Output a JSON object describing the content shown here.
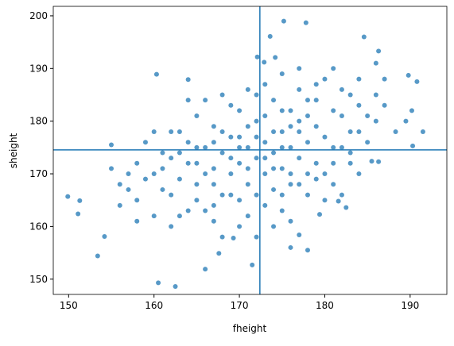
{
  "chart_data": {
    "type": "scatter",
    "x_label": "fheight",
    "y_label": "sheight",
    "color": "#1f77b4",
    "xlim": [
      148.2,
      194.3
    ],
    "ylim": [
      147.1,
      201.8
    ],
    "xticks": [
      150,
      160,
      170,
      180,
      190
    ],
    "yticks": [
      150,
      160,
      170,
      180,
      190,
      200
    ],
    "vlines": [
      172.4
    ],
    "hlines": [
      174.55
    ],
    "x": [
      149.9,
      151.1,
      151.3,
      153.4,
      154.2,
      155,
      160.3,
      160.5,
      162.5,
      164,
      172.1,
      172.9,
      173.6,
      175.2,
      177.8,
      174.2,
      184.6,
      186.3,
      189.8,
      190.8,
      191.5,
      190.3,
      178,
      177,
      167.6,
      166,
      171.5,
      169.3,
      179.4,
      181.6,
      182.5,
      185.5,
      186.3,
      188.3,
      190.2,
      189.5,
      187,
      186,
      160,
      161,
      162,
      163,
      164,
      165,
      165,
      166,
      166,
      167,
      167,
      168,
      168,
      169,
      169,
      170,
      170,
      170,
      171,
      171,
      171,
      172,
      172,
      172,
      173,
      173,
      173,
      174,
      174,
      174,
      175,
      175,
      175,
      176,
      176,
      176,
      177,
      177,
      177,
      178,
      178,
      178,
      179,
      179,
      180,
      180,
      181,
      181,
      182,
      182,
      183,
      183,
      184,
      184,
      185,
      185,
      186,
      176,
      174,
      170,
      167,
      164,
      162,
      158,
      157,
      156,
      159,
      158,
      155,
      156,
      168,
      166,
      164,
      162,
      163,
      165,
      167,
      169,
      171,
      173,
      175,
      177,
      179,
      181,
      183,
      180,
      178,
      176,
      174,
      172,
      170,
      168,
      166,
      164,
      162,
      160,
      161,
      163,
      165,
      167,
      169,
      171,
      173,
      175,
      177,
      179,
      181,
      182,
      184,
      186,
      187,
      176,
      172,
      168,
      160,
      158,
      157,
      159,
      161,
      163,
      165,
      167,
      169,
      171,
      173,
      175,
      177,
      179,
      181,
      183,
      184,
      182,
      180,
      170,
      172,
      174,
      176,
      178,
      175
    ],
    "y": [
      165.7,
      162.4,
      164.9,
      154.4,
      158.1,
      175.5,
      188.9,
      149.3,
      148.6,
      187.9,
      192.2,
      191.2,
      196.1,
      199,
      198.7,
      192.1,
      196,
      193.3,
      188.7,
      187.5,
      178,
      175.3,
      155.5,
      158.4,
      154.9,
      151.9,
      152.7,
      157.8,
      162.3,
      164.8,
      163.6,
      172.4,
      172.3,
      178,
      182,
      180,
      188,
      191,
      170,
      174,
      166,
      178,
      172,
      168,
      181,
      175,
      163,
      171,
      179,
      174,
      166,
      177,
      170,
      172,
      182,
      165,
      175,
      168,
      179,
      173,
      185,
      166,
      176,
      170,
      181,
      174,
      167,
      184,
      178,
      171,
      163,
      175,
      182,
      168,
      173,
      186,
      178,
      170,
      181,
      176,
      184,
      172,
      177,
      188,
      175,
      168,
      181,
      186,
      178,
      172,
      183,
      188,
      176,
      181,
      185,
      161,
      160,
      160,
      161,
      163,
      160,
      165,
      170,
      168,
      176,
      172,
      171,
      164,
      185,
      184,
      184,
      178,
      169,
      175,
      176,
      173,
      171,
      173,
      175,
      180,
      179,
      182,
      185,
      170,
      166,
      170,
      178,
      177,
      177,
      178,
      170,
      176,
      173,
      178,
      167,
      174,
      172,
      168,
      183,
      186,
      187,
      189,
      190,
      187,
      190,
      175,
      178,
      180,
      183,
      156,
      158,
      158,
      162,
      161,
      167,
      169,
      171,
      162,
      165,
      164,
      166,
      162,
      164,
      166,
      168,
      169,
      172,
      174,
      170,
      166,
      165,
      175,
      180,
      171,
      179,
      184,
      182
    ]
  }
}
